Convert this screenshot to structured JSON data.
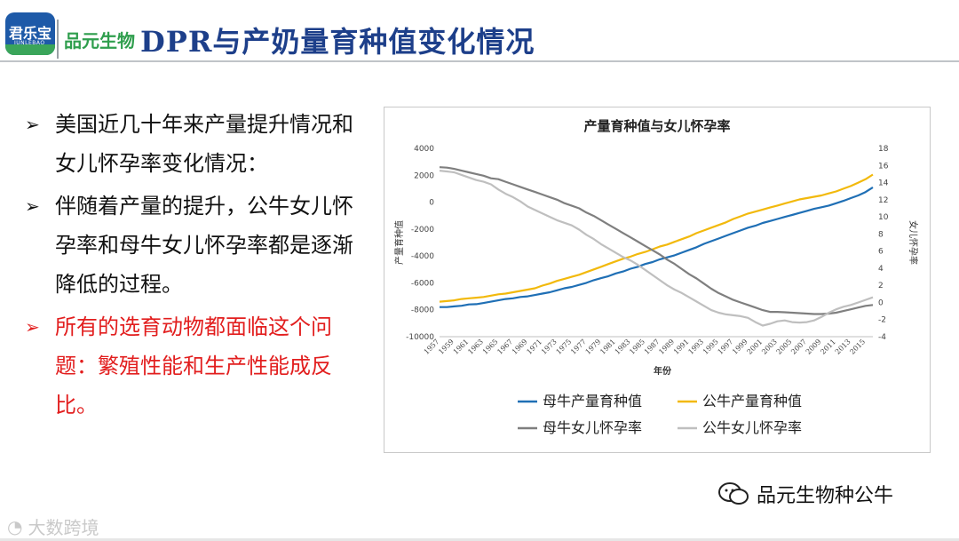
{
  "header": {
    "logo_text": "君乐宝",
    "logo_sub": "JUNLEBAO",
    "brand2": "品元生物",
    "title": "DPR与产奶量育种值变化情况"
  },
  "bullets": [
    {
      "text": "美国近几十年来产量提升情况和女儿怀孕率变化情况：",
      "color": "#111111"
    },
    {
      "text": "伴随着产量的提升，公牛女儿怀孕率和母牛女儿怀孕率都是逐渐降低的过程。",
      "color": "#111111"
    },
    {
      "text": "所有的选育动物都面临这个问题：繁殖性能和生产性能成反比。",
      "color": "#e21e1e"
    }
  ],
  "chart_data": {
    "type": "line",
    "title": "产量育种值与女儿怀孕率",
    "xlabel": "年份",
    "ylabel": "产量育种值",
    "y2label": "女儿怀孕率",
    "x": [
      1957,
      1958,
      1959,
      1960,
      1961,
      1962,
      1963,
      1964,
      1965,
      1966,
      1967,
      1968,
      1969,
      1970,
      1971,
      1972,
      1973,
      1974,
      1975,
      1976,
      1977,
      1978,
      1979,
      1980,
      1981,
      1982,
      1983,
      1984,
      1985,
      1986,
      1987,
      1988,
      1989,
      1990,
      1991,
      1992,
      1993,
      1994,
      1995,
      1996,
      1997,
      1998,
      1999,
      2000,
      2001,
      2002,
      2003,
      2004,
      2005,
      2006,
      2007,
      2008,
      2009,
      2010,
      2011,
      2012,
      2013,
      2014,
      2015,
      2016
    ],
    "x_tick_labels": [
      "1957",
      "1959",
      "1961",
      "1963",
      "1965",
      "1967",
      "1969",
      "1971",
      "1973",
      "1975",
      "1977",
      "1979",
      "1981",
      "1983",
      "1985",
      "1987",
      "1989",
      "1991",
      "1993",
      "1995",
      "1997",
      "1999",
      "2001",
      "2003",
      "2005",
      "2007",
      "2009",
      "2011",
      "2013",
      "2015"
    ],
    "ylim": [
      -10000,
      4000
    ],
    "y_ticks": [
      4000,
      2000,
      0,
      -2000,
      -4000,
      -6000,
      -8000,
      -10000
    ],
    "y2lim": [
      -4,
      18
    ],
    "y2_ticks": [
      18,
      16,
      14,
      12,
      10,
      8,
      6,
      4,
      2,
      0,
      -2,
      -4
    ],
    "series": [
      {
        "name": "母牛产量育种值",
        "axis": "left",
        "color": "#1f6fb5",
        "values": [
          -7800,
          -7800,
          -7750,
          -7700,
          -7600,
          -7580,
          -7500,
          -7400,
          -7300,
          -7200,
          -7150,
          -7050,
          -7000,
          -6900,
          -6800,
          -6700,
          -6550,
          -6400,
          -6300,
          -6150,
          -6000,
          -5800,
          -5650,
          -5500,
          -5300,
          -5150,
          -4950,
          -4800,
          -4600,
          -4450,
          -4250,
          -4100,
          -3950,
          -3750,
          -3550,
          -3350,
          -3100,
          -2900,
          -2700,
          -2500,
          -2300,
          -2100,
          -1900,
          -1750,
          -1550,
          -1400,
          -1250,
          -1100,
          -950,
          -800,
          -650,
          -500,
          -380,
          -250,
          -80,
          100,
          300,
          500,
          750,
          1100
        ]
      },
      {
        "name": "公牛产量育种值",
        "axis": "left",
        "color": "#f2b90c",
        "values": [
          -7400,
          -7350,
          -7300,
          -7200,
          -7150,
          -7100,
          -7050,
          -6950,
          -6850,
          -6800,
          -6700,
          -6600,
          -6500,
          -6400,
          -6200,
          -6050,
          -5850,
          -5700,
          -5550,
          -5400,
          -5200,
          -5000,
          -4800,
          -4600,
          -4400,
          -4200,
          -4050,
          -3850,
          -3700,
          -3500,
          -3300,
          -3150,
          -2950,
          -2750,
          -2550,
          -2300,
          -2100,
          -1900,
          -1700,
          -1500,
          -1250,
          -1050,
          -850,
          -700,
          -550,
          -400,
          -250,
          -100,
          50,
          200,
          300,
          400,
          500,
          650,
          800,
          1000,
          1200,
          1450,
          1700,
          2050
        ]
      },
      {
        "name": "母牛女儿怀孕率",
        "axis": "right",
        "color": "#7f7f7f",
        "values": [
          15.8,
          15.75,
          15.6,
          15.4,
          15.2,
          15.0,
          14.8,
          14.5,
          14.4,
          14.1,
          13.8,
          13.5,
          13.2,
          12.9,
          12.6,
          12.3,
          12.0,
          11.6,
          11.3,
          11.0,
          10.5,
          10.1,
          9.6,
          9.1,
          8.6,
          8.1,
          7.6,
          7.1,
          6.6,
          6.1,
          5.6,
          5.0,
          4.5,
          3.9,
          3.3,
          2.8,
          2.2,
          1.6,
          1.1,
          0.7,
          0.3,
          0.0,
          -0.3,
          -0.6,
          -0.9,
          -1.1,
          -1.1,
          -1.15,
          -1.2,
          -1.25,
          -1.3,
          -1.35,
          -1.35,
          -1.3,
          -1.2,
          -1.0,
          -0.8,
          -0.6,
          -0.4,
          -0.3
        ]
      },
      {
        "name": "公牛女儿怀孕率",
        "axis": "right",
        "color": "#bfbfbf",
        "values": [
          15.4,
          15.3,
          15.2,
          14.9,
          14.6,
          14.3,
          14.1,
          13.8,
          13.2,
          12.7,
          12.3,
          11.8,
          11.2,
          10.8,
          10.4,
          10.0,
          9.6,
          9.3,
          9.0,
          8.5,
          7.9,
          7.4,
          6.8,
          6.3,
          5.8,
          5.3,
          4.9,
          4.4,
          3.8,
          3.2,
          2.6,
          2.0,
          1.5,
          1.1,
          0.6,
          0.1,
          -0.4,
          -0.9,
          -1.2,
          -1.4,
          -1.5,
          -1.6,
          -1.8,
          -2.3,
          -2.7,
          -2.5,
          -2.2,
          -2.1,
          -2.3,
          -2.35,
          -2.3,
          -2.1,
          -1.7,
          -1.2,
          -0.8,
          -0.5,
          -0.3,
          0.0,
          0.3,
          0.6
        ]
      }
    ],
    "legend_position": "bottom",
    "legend_columns": 2,
    "grid": false
  },
  "footer": {
    "wechat_text": "品元生物种公牛",
    "watermark": "大数跨境"
  }
}
